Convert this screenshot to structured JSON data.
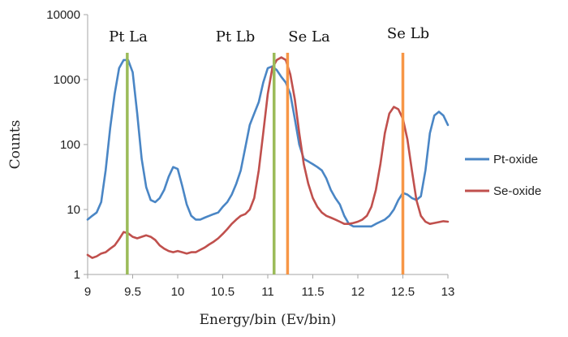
{
  "chart_data": {
    "type": "line",
    "title": "",
    "xlabel": "Energy/bin (Ev/bin)",
    "ylabel": "Counts",
    "xlim": [
      9,
      13
    ],
    "ylim": [
      1,
      10000
    ],
    "yscale": "log",
    "grid": false,
    "legend_position": "right",
    "x_ticks": [
      9,
      9.5,
      10,
      10.5,
      11,
      11.5,
      12,
      12.5,
      13
    ],
    "x_tick_labels": [
      "9",
      "9.5",
      "10",
      "10.5",
      "11",
      "11.5",
      "12",
      "12.5",
      "13"
    ],
    "y_ticks": [
      1,
      10,
      100,
      1000,
      10000
    ],
    "y_tick_labels": [
      "1",
      "10",
      "100",
      "1000",
      "10000"
    ],
    "colors": {
      "pt_oxide": "#4a86c5",
      "se_oxide": "#c0504d",
      "pt_marker": "#9bbb59",
      "se_marker": "#f79646"
    },
    "peak_markers": [
      {
        "label": "Pt La",
        "x": 9.44,
        "color": "#9bbb59"
      },
      {
        "label": "Pt Lb",
        "x": 11.07,
        "color": "#9bbb59"
      },
      {
        "label": "Se La",
        "x": 11.22,
        "color": "#f79646"
      },
      {
        "label": "Se Lb",
        "x": 12.5,
        "color": "#f79646"
      }
    ],
    "series": [
      {
        "name": "Pt-oxide",
        "color": "#4a86c5",
        "x": [
          9.0,
          9.05,
          9.1,
          9.15,
          9.2,
          9.25,
          9.3,
          9.35,
          9.4,
          9.45,
          9.5,
          9.55,
          9.6,
          9.65,
          9.7,
          9.75,
          9.8,
          9.85,
          9.9,
          9.95,
          10.0,
          10.05,
          10.1,
          10.15,
          10.2,
          10.25,
          10.3,
          10.35,
          10.4,
          10.45,
          10.5,
          10.55,
          10.6,
          10.65,
          10.7,
          10.75,
          10.8,
          10.85,
          10.9,
          10.95,
          11.0,
          11.05,
          11.1,
          11.15,
          11.2,
          11.25,
          11.3,
          11.35,
          11.4,
          11.45,
          11.5,
          11.55,
          11.6,
          11.65,
          11.7,
          11.75,
          11.8,
          11.85,
          11.9,
          11.95,
          12.0,
          12.05,
          12.1,
          12.15,
          12.2,
          12.25,
          12.3,
          12.35,
          12.4,
          12.45,
          12.5,
          12.55,
          12.6,
          12.65,
          12.7,
          12.75,
          12.8,
          12.85,
          12.9,
          12.95,
          13.0
        ],
        "values": [
          7,
          8,
          9,
          13,
          40,
          180,
          600,
          1500,
          2000,
          2000,
          1300,
          300,
          60,
          22,
          14,
          13,
          15,
          20,
          32,
          45,
          42,
          23,
          12,
          8,
          7,
          7,
          7.5,
          8,
          8.5,
          9,
          11,
          13,
          17,
          25,
          40,
          90,
          200,
          300,
          450,
          900,
          1500,
          1600,
          1400,
          1100,
          900,
          600,
          250,
          100,
          60,
          55,
          50,
          45,
          40,
          30,
          20,
          15,
          12,
          8,
          6,
          5.5,
          5.5,
          5.5,
          5.5,
          5.5,
          6,
          6.5,
          7,
          8,
          10,
          14,
          18,
          17,
          15,
          14,
          16,
          40,
          150,
          280,
          320,
          280,
          200
        ]
      },
      {
        "name": "Se-oxide",
        "color": "#c0504d",
        "x": [
          9.0,
          9.05,
          9.1,
          9.15,
          9.2,
          9.25,
          9.3,
          9.35,
          9.4,
          9.45,
          9.5,
          9.55,
          9.6,
          9.65,
          9.7,
          9.75,
          9.8,
          9.85,
          9.9,
          9.95,
          10.0,
          10.05,
          10.1,
          10.15,
          10.2,
          10.25,
          10.3,
          10.35,
          10.4,
          10.45,
          10.5,
          10.55,
          10.6,
          10.65,
          10.7,
          10.75,
          10.8,
          10.85,
          10.9,
          10.95,
          11.0,
          11.05,
          11.1,
          11.15,
          11.2,
          11.25,
          11.3,
          11.35,
          11.4,
          11.45,
          11.5,
          11.55,
          11.6,
          11.65,
          11.7,
          11.75,
          11.8,
          11.85,
          11.9,
          11.95,
          12.0,
          12.05,
          12.1,
          12.15,
          12.2,
          12.25,
          12.3,
          12.35,
          12.4,
          12.45,
          12.5,
          12.55,
          12.6,
          12.65,
          12.7,
          12.75,
          12.8,
          12.85,
          12.9,
          12.95,
          13.0
        ],
        "values": [
          2.0,
          1.8,
          1.9,
          2.1,
          2.2,
          2.5,
          2.8,
          3.5,
          4.5,
          4.3,
          3.8,
          3.6,
          3.8,
          4.0,
          3.8,
          3.4,
          2.8,
          2.5,
          2.3,
          2.2,
          2.3,
          2.2,
          2.1,
          2.2,
          2.2,
          2.4,
          2.6,
          2.9,
          3.2,
          3.6,
          4.2,
          5.0,
          6.0,
          7.0,
          8.0,
          8.5,
          10,
          15,
          40,
          150,
          600,
          1500,
          2000,
          2200,
          2000,
          1200,
          500,
          150,
          50,
          25,
          15,
          11,
          9,
          8,
          7.5,
          7,
          6.5,
          6,
          6,
          6.2,
          6.5,
          7,
          8,
          11,
          20,
          50,
          150,
          300,
          380,
          350,
          250,
          120,
          40,
          14,
          8,
          6.5,
          6,
          6.2,
          6.4,
          6.6,
          6.5
        ]
      }
    ]
  }
}
